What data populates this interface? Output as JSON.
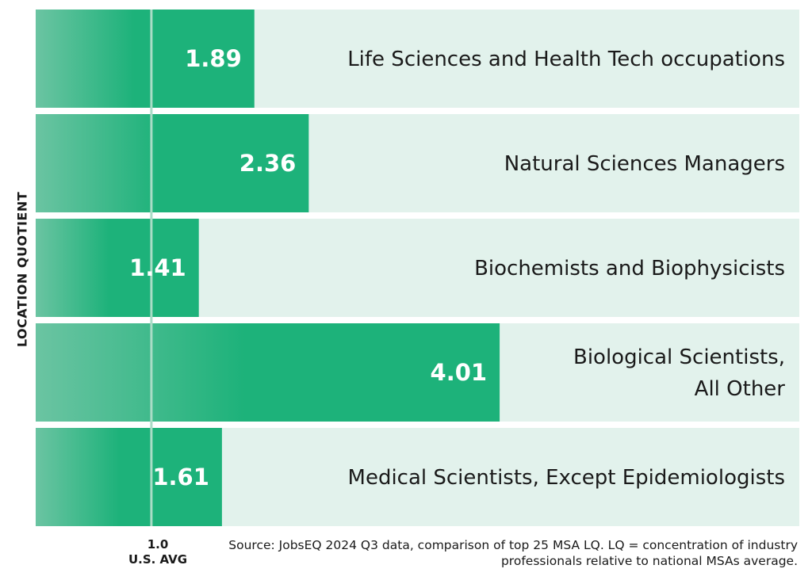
{
  "chart_data": {
    "type": "bar",
    "orientation": "horizontal",
    "ylabel": "LOCATION QUOTIENT",
    "categories": [
      [
        "Life Sciences and Health Tech occupations"
      ],
      [
        "Natural Sciences Managers"
      ],
      [
        "Biochemists and Biophysicists"
      ],
      [
        "Biological Scientists,",
        "All Other"
      ],
      [
        "Medical Scientists, Except Epidemiologists"
      ]
    ],
    "values": [
      1.89,
      2.36,
      1.41,
      4.01,
      1.61
    ],
    "value_labels": [
      "1.89",
      "2.36",
      "1.41",
      "4.01",
      "1.61"
    ],
    "baseline": {
      "value": 1.0,
      "label_value": "1.0",
      "label_text": "U.S. AVG"
    },
    "xlim": [
      0,
      6.6
    ],
    "colors": {
      "bar": "#1db27a",
      "bar_faded": "#6bc4a2",
      "row_background": "#e2f2ec",
      "baseline": "#a9dcc6"
    },
    "grid": false
  },
  "source_note": "Source: JobsEQ 2024 Q3 data, comparison of top 25 MSA LQ. LQ = concentration of industry professionals relative to national MSAs average."
}
